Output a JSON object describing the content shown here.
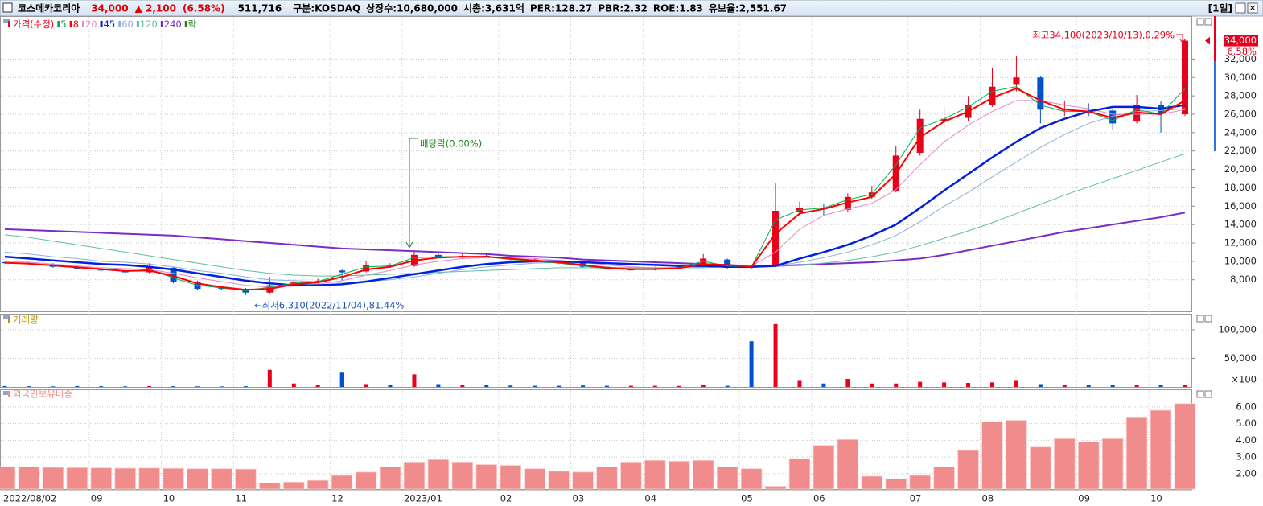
{
  "header": {
    "name": "코스메카코리아",
    "price": "34,000",
    "change": "▲ 2,100",
    "change_pct": "(6.58%)",
    "volume": "511,716",
    "info": [
      "구분:KOSDAQ",
      "상장수:10,680,000",
      "시총:3,631억",
      "PER:128.27",
      "PBR:2.32",
      "ROE:1.83",
      "유보율:2,551.67"
    ],
    "period": "[1일]"
  },
  "chart_data": [
    {
      "type": "candlestick",
      "legend_title": "가격(수정)",
      "dividend_legend": "락",
      "categories": [
        "2022/08/02",
        null,
        null,
        null,
        "09",
        null,
        null,
        "10",
        null,
        null,
        "11",
        null,
        null,
        null,
        "12",
        null,
        null,
        "2023/01",
        null,
        null,
        null,
        "02",
        null,
        null,
        "03",
        null,
        null,
        "04",
        null,
        null,
        null,
        "05",
        null,
        null,
        "06",
        null,
        null,
        null,
        "07",
        null,
        null,
        "08",
        null,
        null,
        null,
        "09",
        null,
        null,
        "10",
        null
      ],
      "open": [
        9900,
        9800,
        9700,
        9400,
        9200,
        9000,
        8800,
        9300,
        7800,
        7100,
        7000,
        6600,
        7400,
        7700,
        9000,
        8900,
        9600,
        9500,
        10700,
        10500,
        10600,
        10500,
        10200,
        10000,
        9800,
        9400,
        9100,
        9100,
        9300,
        9400,
        10200,
        9500,
        9500,
        15400,
        15800,
        15600,
        17000,
        17600,
        21800,
        25300,
        25600,
        27000,
        29200,
        30000,
        26400,
        26600,
        26400,
        25200,
        27000,
        26000
      ],
      "high": [
        10000,
        9900,
        9800,
        9500,
        9300,
        9100,
        9800,
        9400,
        7900,
        7300,
        7100,
        8300,
        7900,
        8100,
        9100,
        10000,
        9800,
        11200,
        10900,
        10900,
        10800,
        10600,
        10300,
        10100,
        9900,
        9500,
        9300,
        9400,
        9600,
        10800,
        10300,
        9600,
        18500,
        16500,
        16200,
        17400,
        18200,
        22500,
        26500,
        26800,
        28000,
        31000,
        32300,
        30200,
        27500,
        27200,
        26600,
        28100,
        27400,
        34100
      ],
      "low": [
        9700,
        9600,
        9300,
        9100,
        8900,
        8700,
        8700,
        7600,
        6900,
        6900,
        6310,
        6500,
        7300,
        7600,
        7900,
        8800,
        9300,
        9400,
        10400,
        10300,
        10400,
        10100,
        9900,
        9700,
        9300,
        8900,
        8900,
        9000,
        9200,
        9300,
        9200,
        9200,
        9400,
        15000,
        15000,
        15400,
        16800,
        17500,
        21500,
        24500,
        25300,
        26800,
        28500,
        25000,
        25800,
        25800,
        24300,
        25000,
        24000,
        25800
      ],
      "close": [
        9800,
        9700,
        9400,
        9200,
        9000,
        8800,
        9400,
        7800,
        7000,
        7000,
        6600,
        7400,
        7700,
        7900,
        8800,
        9600,
        9500,
        10700,
        10500,
        10600,
        10500,
        10200,
        10000,
        9800,
        9400,
        9100,
        9100,
        9300,
        9400,
        10300,
        9300,
        9400,
        15500,
        15800,
        15700,
        17000,
        17500,
        21500,
        25500,
        25500,
        27000,
        29000,
        30000,
        26500,
        26500,
        26500,
        25000,
        27000,
        26000,
        34000
      ],
      "up_color": "#e8001c",
      "down_color": "#0050d0",
      "series": [
        {
          "name": "5",
          "color": "#00b050",
          "values": [
            9800,
            9750,
            9500,
            9300,
            9100,
            8900,
            9100,
            8200,
            7400,
            7100,
            6800,
            7200,
            7600,
            7800,
            8600,
            9400,
            9500,
            10400,
            10500,
            10500,
            10500,
            10200,
            10000,
            9800,
            9500,
            9200,
            9100,
            9200,
            9300,
            10000,
            9500,
            9400,
            14500,
            15600,
            15800,
            16700,
            17300,
            20500,
            24500,
            25500,
            26800,
            28500,
            29000,
            27000,
            26300,
            26300,
            25300,
            26500,
            26000,
            28800
          ]
        },
        {
          "name": "8",
          "color": "#ff0000",
          "values": [
            9850,
            9750,
            9550,
            9350,
            9150,
            8950,
            9000,
            8400,
            7600,
            7200,
            6900,
            7000,
            7500,
            7700,
            8300,
            9100,
            9400,
            10100,
            10400,
            10500,
            10500,
            10300,
            10100,
            9900,
            9600,
            9300,
            9150,
            9150,
            9250,
            9700,
            9600,
            9400,
            13000,
            15200,
            15700,
            16400,
            17000,
            19500,
            23500,
            25200,
            26300,
            27800,
            28800,
            27500,
            26500,
            26300,
            25600,
            26200,
            26000,
            27500
          ]
        },
        {
          "name": "20",
          "color": "#e68ac8",
          "values": [
            10000,
            9900,
            9700,
            9500,
            9300,
            9200,
            9100,
            8700,
            8200,
            7800,
            7400,
            7200,
            7300,
            7500,
            7900,
            8500,
            9000,
            9600,
            10000,
            10300,
            10400,
            10400,
            10300,
            10100,
            9900,
            9600,
            9400,
            9300,
            9300,
            9400,
            9500,
            9500,
            11000,
            13500,
            15000,
            15700,
            16300,
            17800,
            20500,
            23000,
            24800,
            26300,
            27500,
            27500,
            27000,
            26600,
            26000,
            26000,
            26000,
            26500
          ]
        },
        {
          "name": "45",
          "color": "#0020e0",
          "values": [
            10500,
            10300,
            10100,
            9900,
            9700,
            9600,
            9400,
            9100,
            8700,
            8300,
            7900,
            7600,
            7400,
            7400,
            7500,
            7800,
            8200,
            8600,
            9000,
            9400,
            9700,
            9900,
            10000,
            10000,
            9900,
            9800,
            9700,
            9600,
            9500,
            9500,
            9400,
            9400,
            9500,
            10300,
            11000,
            11800,
            12800,
            14000,
            15800,
            17700,
            19500,
            21300,
            23000,
            24500,
            25500,
            26300,
            26800,
            26800,
            26600,
            27000
          ]
        },
        {
          "name": "60",
          "color": "#8cb0dc",
          "values": [
            11000,
            10800,
            10500,
            10300,
            10000,
            9900,
            9700,
            9400,
            9000,
            8700,
            8300,
            8000,
            7900,
            7800,
            7700,
            7800,
            8000,
            8300,
            8700,
            9100,
            9400,
            9600,
            9800,
            9900,
            9900,
            9800,
            9700,
            9700,
            9600,
            9600,
            9500,
            9500,
            9500,
            9900,
            10400,
            11000,
            11800,
            12800,
            14300,
            16000,
            17500,
            19200,
            20800,
            22400,
            23800,
            25000,
            25800,
            26300,
            26400,
            26600
          ]
        },
        {
          "name": "120",
          "color": "#5cc0a0",
          "values": [
            12900,
            12600,
            12200,
            11800,
            11400,
            11000,
            10600,
            10200,
            9800,
            9400,
            9000,
            8700,
            8500,
            8400,
            8400,
            8500,
            8600,
            8700,
            8800,
            8900,
            9000,
            9100,
            9200,
            9300,
            9300,
            9300,
            9300,
            9300,
            9300,
            9300,
            9400,
            9400,
            9500,
            9600,
            9800,
            10100,
            10500,
            11000,
            11700,
            12500,
            13300,
            14200,
            15200,
            16200,
            17200,
            18100,
            19000,
            19900,
            20800,
            21700
          ]
        },
        {
          "name": "240",
          "color": "#7a2cc8",
          "values": [
            13500,
            13400,
            13300,
            13200,
            13100,
            13000,
            12900,
            12800,
            12600,
            12400,
            12200,
            12000,
            11800,
            11600,
            11400,
            11300,
            11200,
            11100,
            11000,
            10900,
            10800,
            10600,
            10500,
            10400,
            10200,
            10100,
            10000,
            9900,
            9800,
            9700,
            9600,
            9500,
            9500,
            9600,
            9700,
            9800,
            9900,
            10100,
            10300,
            10700,
            11200,
            11700,
            12200,
            12700,
            13200,
            13600,
            14000,
            14400,
            14800,
            15300
          ]
        }
      ],
      "ylim": [
        5000,
        36500
      ],
      "yticks": [
        {
          "value": 8000,
          "label": "8,000"
        },
        {
          "value": 10000,
          "label": "10,000"
        },
        {
          "value": 12000,
          "label": "12,000"
        },
        {
          "value": 14000,
          "label": "14,000"
        },
        {
          "value": 16000,
          "label": "16,000"
        },
        {
          "value": 18000,
          "label": "18,000"
        },
        {
          "value": 20000,
          "label": "20,000"
        },
        {
          "value": 22000,
          "label": "22,000"
        },
        {
          "value": 24000,
          "label": "24,000"
        },
        {
          "value": 26000,
          "label": "26,000"
        },
        {
          "value": 28000,
          "label": "28,000"
        },
        {
          "value": 30000,
          "label": "30,000"
        },
        {
          "value": 32000,
          "label": "32,000"
        }
      ],
      "current_pct_label": "6.58%",
      "annotations": {
        "dividend": "배당락(0.00%)",
        "low": "←최저6,310(2022/11/04),81.44%",
        "high": "최고34,100(2023/10/13),0.29%"
      },
      "grid": true
    },
    {
      "type": "bar",
      "legend_title": "거래량",
      "values": [
        1500,
        1200,
        1000,
        1500,
        1200,
        1000,
        1500,
        1200,
        1000,
        900,
        1200,
        30000,
        6000,
        3000,
        25000,
        5000,
        3000,
        22000,
        5000,
        4000,
        3000,
        2500,
        2000,
        2000,
        2500,
        2000,
        2000,
        2000,
        1800,
        3000,
        2000,
        80000,
        110000,
        12000,
        6000,
        14000,
        6000,
        6000,
        9000,
        8000,
        7000,
        8000,
        12000,
        5000,
        4000,
        3000,
        3000,
        4000,
        3000,
        4000
      ],
      "ylim": [
        0,
        114000
      ],
      "yticks": [
        {
          "value": 50000,
          "label": "50,000"
        },
        {
          "value": 100000,
          "label": "100,000"
        }
      ],
      "unit_label": "×100",
      "grid": true
    },
    {
      "type": "bar",
      "legend_title": "외국인보유비중",
      "color": "#f08c8c",
      "values": [
        2.42,
        2.4,
        2.38,
        2.36,
        2.35,
        2.33,
        2.34,
        2.32,
        2.3,
        2.3,
        2.28,
        1.45,
        1.5,
        1.6,
        1.9,
        2.1,
        2.4,
        2.7,
        2.85,
        2.7,
        2.55,
        2.5,
        2.3,
        2.15,
        2.1,
        2.4,
        2.7,
        2.8,
        2.75,
        2.8,
        2.4,
        2.3,
        1.25,
        2.9,
        3.7,
        4.05,
        1.85,
        1.7,
        1.9,
        2.4,
        3.4,
        5.1,
        5.2,
        3.6,
        4.1,
        3.9,
        4.1,
        5.4,
        5.8,
        6.2
      ],
      "ylim": [
        1.08,
        6.67
      ],
      "yticks": [
        {
          "value": 2,
          "label": "2.00"
        },
        {
          "value": 3,
          "label": "3.00"
        },
        {
          "value": 4,
          "label": "4.00"
        },
        {
          "value": 5,
          "label": "5.00"
        },
        {
          "value": 6,
          "label": "6.00"
        }
      ],
      "grid": true
    }
  ]
}
